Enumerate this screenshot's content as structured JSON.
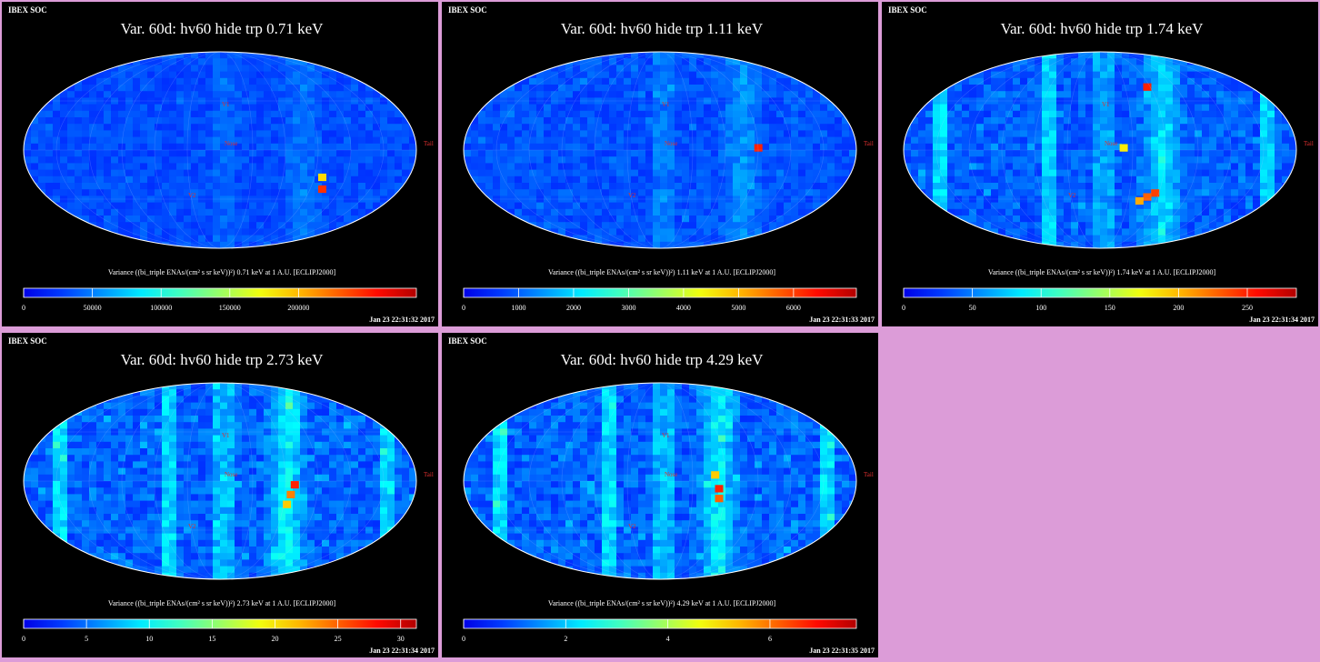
{
  "panels": [
    {
      "header": "IBEX SOC",
      "title": "Var. 60d: hv60 hide trp 0.71 keV",
      "colorbar_label": "Variance ((bi_triple ENAs/(cm² s sr keV))²) 0.71 keV at 1 A.U. [ECLIPJ2000]",
      "ticks": [
        "0",
        "50000",
        "100000",
        "150000",
        "200000"
      ],
      "tick_positions": [
        0,
        0.175,
        0.35,
        0.525,
        0.7
      ],
      "timestamp": "Jan 23 22:31:32 2017",
      "hot": [
        [
          0.75,
          0.62,
          "#ffdd00"
        ],
        [
          0.75,
          0.68,
          "#ff3000"
        ]
      ],
      "stripe": 0.7,
      "intensity": 0.15
    },
    {
      "header": "IBEX SOC",
      "title": "Var. 60d: hv60 hide trp 1.11 keV",
      "colorbar_label": "Variance ((bi_triple ENAs/(cm² s sr keV))²) 1.11 keV at 1 A.U. [ECLIPJ2000]",
      "ticks": [
        "0",
        "1000",
        "2000",
        "3000",
        "4000",
        "5000",
        "6000"
      ],
      "tick_positions": [
        0,
        0.14,
        0.28,
        0.42,
        0.56,
        0.7,
        0.84
      ],
      "timestamp": "Jan 23 22:31:33 2017",
      "hot": [
        [
          0.74,
          0.47,
          "#ff2000"
        ]
      ],
      "stripe": 0.7,
      "intensity": 0.25
    },
    {
      "header": "IBEX SOC",
      "title": "Var. 60d: hv60 hide trp 1.74 keV",
      "colorbar_label": "Variance ((bi_triple ENAs/(cm² s sr keV))²) 1.74 keV at 1 A.U. [ECLIPJ2000]",
      "ticks": [
        "0",
        "50",
        "100",
        "150",
        "200",
        "250"
      ],
      "tick_positions": [
        0,
        0.175,
        0.35,
        0.525,
        0.7,
        0.875
      ],
      "timestamp": "Jan 23 22:31:34 2017",
      "hot": [
        [
          0.63,
          0.7,
          "#ff4000"
        ],
        [
          0.61,
          0.72,
          "#ff6000"
        ],
        [
          0.59,
          0.74,
          "#ffaa00"
        ],
        [
          0.55,
          0.47,
          "#ffee00"
        ],
        [
          0.61,
          0.16,
          "#ff2000"
        ]
      ],
      "stripe": 0.65,
      "intensity": 0.45
    },
    {
      "header": "IBEX SOC",
      "title": "Var. 60d: hv60 hide trp 2.73 keV",
      "colorbar_label": "Variance ((bi_triple ENAs/(cm² s sr keV))²) 2.73 keV at 1 A.U. [ECLIPJ2000]",
      "ticks": [
        "0",
        "5",
        "10",
        "15",
        "20",
        "25",
        "30"
      ],
      "tick_positions": [
        0,
        0.16,
        0.32,
        0.48,
        0.64,
        0.8,
        0.96
      ],
      "timestamp": "Jan 23 22:31:34 2017",
      "hot": [
        [
          0.68,
          0.5,
          "#ff2000"
        ],
        [
          0.67,
          0.55,
          "#ff8000"
        ],
        [
          0.66,
          0.6,
          "#ffcc00"
        ]
      ],
      "stripe": 0.66,
      "intensity": 0.55
    },
    {
      "header": "IBEX SOC",
      "title": "Var. 60d: hv60 hide trp 4.29 keV",
      "colorbar_label": "Variance ((bi_triple ENAs/(cm² s sr keV))²) 4.29 keV at 1 A.U. [ECLIPJ2000]",
      "ticks": [
        "0",
        "2",
        "4",
        "6"
      ],
      "tick_positions": [
        0,
        0.26,
        0.52,
        0.78
      ],
      "timestamp": "Jan 23 22:31:35 2017",
      "hot": [
        [
          0.64,
          0.52,
          "#ff2000"
        ],
        [
          0.64,
          0.57,
          "#ff6000"
        ],
        [
          0.63,
          0.45,
          "#ffcc00"
        ]
      ],
      "stripe": 0.64,
      "intensity": 0.55
    }
  ],
  "map_labels": {
    "v1": "V1",
    "v2": "V2",
    "nose": "Nose",
    "tail": "Tail"
  },
  "colors": {
    "background": "#dc9cd8",
    "panel": "#000000"
  }
}
